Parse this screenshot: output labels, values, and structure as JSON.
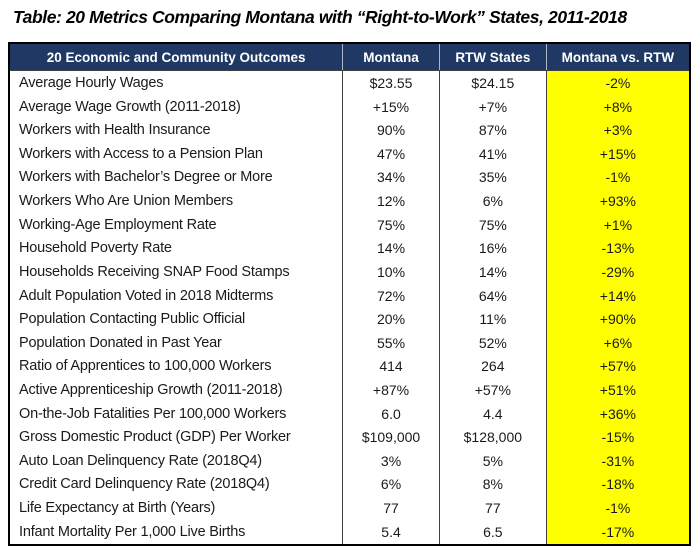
{
  "page": {
    "title": "Table: 20 Metrics Comparing Montana with “Right-to-Work” States, 2011-2018"
  },
  "colors": {
    "header_bg": "#1F3864",
    "header_text": "#FFFFFF",
    "highlight_col_bg": "#FFFF00",
    "body_text": "#1A1A1A",
    "outer_border": "#000000",
    "column_divider": "#404040"
  },
  "chart_data": {
    "type": "table",
    "title": "Table: 20 Metrics Comparing Montana with “Right-to-Work” States, 2011-2018",
    "columns": [
      "20 Economic and Community Outcomes",
      "Montana",
      "RTW States",
      "Montana vs. RTW"
    ],
    "rows": [
      [
        "Average Hourly Wages",
        "$23.55",
        "$24.15",
        "-2%"
      ],
      [
        "Average Wage Growth (2011-2018)",
        "+15%",
        "+7%",
        "+8%"
      ],
      [
        "Workers with Health Insurance",
        "90%",
        "87%",
        "+3%"
      ],
      [
        "Workers with Access to a Pension Plan",
        "47%",
        "41%",
        "+15%"
      ],
      [
        "Workers with Bachelor’s Degree or More",
        "34%",
        "35%",
        "-1%"
      ],
      [
        "Workers Who Are Union Members",
        "12%",
        "6%",
        "+93%"
      ],
      [
        "Working-Age Employment Rate",
        "75%",
        "75%",
        "+1%"
      ],
      [
        "Household Poverty Rate",
        "14%",
        "16%",
        "-13%"
      ],
      [
        "Households Receiving SNAP Food Stamps",
        "10%",
        "14%",
        "-29%"
      ],
      [
        "Adult Population Voted in 2018 Midterms",
        "72%",
        "64%",
        "+14%"
      ],
      [
        "Population Contacting Public Official",
        "20%",
        "11%",
        "+90%"
      ],
      [
        "Population Donated in Past Year",
        "55%",
        "52%",
        "+6%"
      ],
      [
        "Ratio of Apprentices to 100,000 Workers",
        "414",
        "264",
        "+57%"
      ],
      [
        "Active Apprenticeship Growth (2011-2018)",
        "+87%",
        "+57%",
        "+51%"
      ],
      [
        "On-the-Job Fatalities Per 100,000 Workers",
        "6.0",
        "4.4",
        "+36%"
      ],
      [
        "Gross Domestic Product (GDP) Per Worker",
        "$109,000",
        "$128,000",
        "-15%"
      ],
      [
        "Auto Loan Delinquency Rate (2018Q4)",
        "3%",
        "5%",
        "-31%"
      ],
      [
        "Credit Card Delinquency Rate (2018Q4)",
        "6%",
        "8%",
        "-18%"
      ],
      [
        "Life Expectancy at Birth (Years)",
        "77",
        "77",
        "-1%"
      ],
      [
        "Infant Mortality Per 1,000 Live Births",
        "5.4",
        "6.5",
        "-17%"
      ]
    ]
  }
}
